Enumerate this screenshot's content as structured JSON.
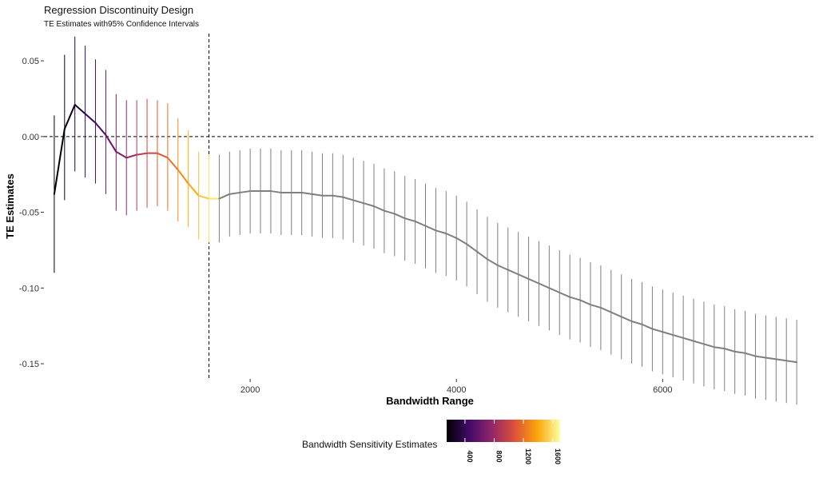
{
  "chart_data": {
    "type": "line",
    "title": "Regression Discontinuity Design",
    "subtitle": "TE Estimates with95% Confidence Intervals",
    "xlabel": "Bandwidth Range",
    "ylabel": "TE Estimates",
    "xlim": [
      0,
      7400
    ],
    "ylim": [
      -0.16,
      0.068
    ],
    "x_ticks": [
      2000,
      4000,
      6000
    ],
    "x_tick_labels": [
      "2000",
      "4000",
      "6000"
    ],
    "y_ticks": [
      0.05,
      0.0,
      -0.05,
      -0.1,
      -0.15
    ],
    "y_tick_labels": [
      "0.05",
      "0.00",
      "-0.05",
      "-0.10",
      "-0.15"
    ],
    "grid": false,
    "reference_lines": {
      "horizontal_y": 0,
      "vertical_x": 1600,
      "style": "dashed"
    },
    "colored_segment_max_x": 1600,
    "gray_color": "#7f7f7f",
    "series": [
      {
        "x": [
          100,
          200,
          300,
          400,
          500,
          600,
          700,
          800,
          900,
          1000,
          1100,
          1200,
          1300,
          1400,
          1500,
          1600,
          1700,
          1800,
          1900,
          2000,
          2100,
          2200,
          2300,
          2400,
          2500,
          2600,
          2700,
          2800,
          2900,
          3000,
          3100,
          3200,
          3300,
          3400,
          3500,
          3600,
          3700,
          3800,
          3900,
          4000,
          4100,
          4200,
          4300,
          4400,
          4500,
          4600,
          4700,
          4800,
          4900,
          5000,
          5100,
          5200,
          5300,
          5400,
          5500,
          5600,
          5700,
          5800,
          5900,
          6000,
          6100,
          6200,
          6300,
          6400,
          6500,
          6600,
          6700,
          6800,
          6900,
          7000,
          7100,
          7200,
          7300
        ],
        "estimate": [
          -0.038,
          0.005,
          0.021,
          0.015,
          0.009,
          0.001,
          -0.01,
          -0.014,
          -0.012,
          -0.011,
          -0.011,
          -0.014,
          -0.022,
          -0.031,
          -0.039,
          -0.041,
          -0.041,
          -0.038,
          -0.037,
          -0.036,
          -0.036,
          -0.036,
          -0.037,
          -0.037,
          -0.037,
          -0.038,
          -0.039,
          -0.039,
          -0.04,
          -0.042,
          -0.044,
          -0.046,
          -0.049,
          -0.051,
          -0.054,
          -0.056,
          -0.059,
          -0.062,
          -0.064,
          -0.067,
          -0.071,
          -0.076,
          -0.081,
          -0.085,
          -0.088,
          -0.091,
          -0.094,
          -0.097,
          -0.1,
          -0.103,
          -0.106,
          -0.108,
          -0.111,
          -0.113,
          -0.116,
          -0.119,
          -0.122,
          -0.124,
          -0.127,
          -0.129,
          -0.131,
          -0.133,
          -0.135,
          -0.137,
          -0.139,
          -0.14,
          -0.142,
          -0.143,
          -0.145,
          -0.146,
          -0.147,
          -0.148,
          -0.149
        ],
        "ci_lower": [
          -0.09,
          -0.042,
          -0.023,
          -0.027,
          -0.031,
          -0.038,
          -0.049,
          -0.052,
          -0.049,
          -0.047,
          -0.046,
          -0.049,
          -0.056,
          -0.06,
          -0.068,
          -0.07,
          -0.07,
          -0.066,
          -0.065,
          -0.064,
          -0.064,
          -0.064,
          -0.065,
          -0.065,
          -0.065,
          -0.066,
          -0.067,
          -0.067,
          -0.068,
          -0.07,
          -0.072,
          -0.074,
          -0.077,
          -0.079,
          -0.082,
          -0.084,
          -0.087,
          -0.09,
          -0.092,
          -0.095,
          -0.099,
          -0.104,
          -0.109,
          -0.113,
          -0.116,
          -0.119,
          -0.122,
          -0.125,
          -0.128,
          -0.131,
          -0.134,
          -0.136,
          -0.139,
          -0.141,
          -0.144,
          -0.147,
          -0.15,
          -0.152,
          -0.155,
          -0.157,
          -0.159,
          -0.161,
          -0.163,
          -0.165,
          -0.167,
          -0.168,
          -0.17,
          -0.171,
          -0.173,
          -0.174,
          -0.175,
          -0.176,
          -0.177
        ],
        "ci_upper": [
          0.014,
          0.054,
          0.066,
          0.06,
          0.051,
          0.044,
          0.028,
          0.024,
          0.024,
          0.025,
          0.024,
          0.022,
          0.012,
          0.004,
          -0.01,
          -0.012,
          -0.012,
          -0.01,
          -0.009,
          -0.008,
          -0.008,
          -0.008,
          -0.009,
          -0.009,
          -0.009,
          -0.01,
          -0.011,
          -0.011,
          -0.012,
          -0.014,
          -0.016,
          -0.018,
          -0.021,
          -0.023,
          -0.026,
          -0.028,
          -0.031,
          -0.034,
          -0.036,
          -0.039,
          -0.043,
          -0.048,
          -0.053,
          -0.057,
          -0.06,
          -0.063,
          -0.066,
          -0.069,
          -0.072,
          -0.075,
          -0.078,
          -0.08,
          -0.083,
          -0.085,
          -0.088,
          -0.091,
          -0.094,
          -0.096,
          -0.099,
          -0.101,
          -0.103,
          -0.105,
          -0.107,
          -0.109,
          -0.111,
          -0.112,
          -0.114,
          -0.115,
          -0.117,
          -0.118,
          -0.119,
          -0.12,
          -0.121
        ]
      }
    ],
    "legend": {
      "title": "Bandwidth Sensitivity Estimates",
      "placement": "bottom",
      "range": [
        150,
        1700
      ],
      "ticks": [
        400,
        800,
        1200,
        1600
      ],
      "tick_labels": [
        "400",
        "800",
        "1200",
        "1600"
      ],
      "colormap": [
        "#000004",
        "#420a68",
        "#932667",
        "#dd513a",
        "#fca50a",
        "#fcffa4"
      ]
    }
  }
}
